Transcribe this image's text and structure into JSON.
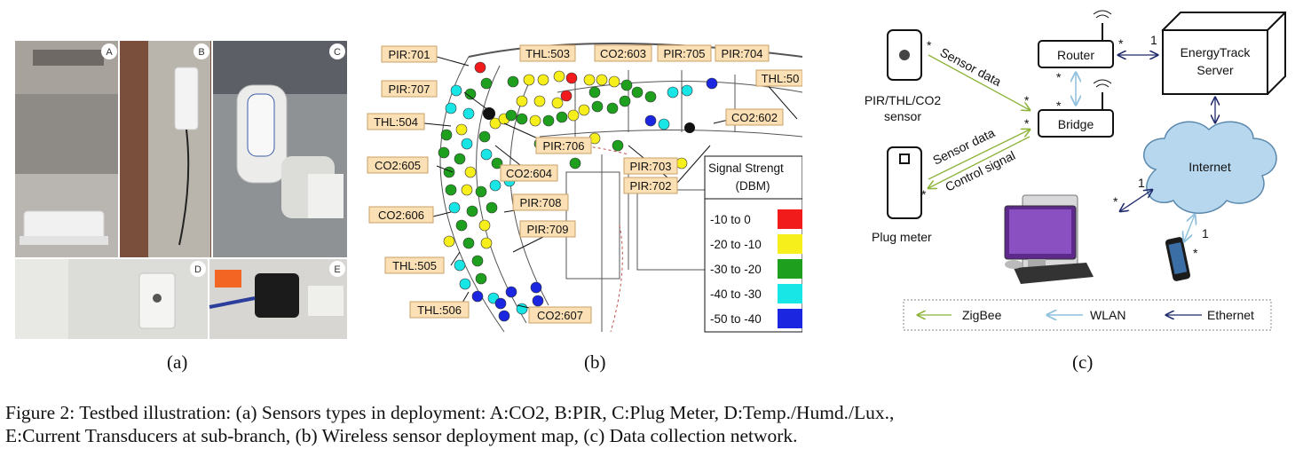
{
  "figure": {
    "panel_a": {
      "label": "(a)",
      "photos": [
        {
          "letter": "A",
          "subject": "CO2 sensor"
        },
        {
          "letter": "B",
          "subject": "PIR sensor"
        },
        {
          "letter": "C",
          "subject": "Plug meter"
        },
        {
          "letter": "D",
          "subject": "Temp/Humd/Lux sensor"
        },
        {
          "letter": "E",
          "subject": "Current transducers"
        }
      ]
    },
    "panel_b": {
      "label": "(b)",
      "tags": [
        "PIR:701",
        "THL:503",
        "CO2:603",
        "PIR:705",
        "PIR:704",
        "THL:50",
        "PIR:707",
        "THL:504",
        "PIR:706",
        "CO2:602",
        "CO2:604",
        "CO2:605",
        "PIR:703",
        "PIR:702",
        "PIR:708",
        "CO2:606",
        "PIR:709",
        "THL:505",
        "THL:506",
        "CO2:607"
      ],
      "legend": {
        "title_line1": "Signal Strengt",
        "title_line2": "(DBM)",
        "items": [
          {
            "label": "-10 to 0",
            "color": "#f21b1b"
          },
          {
            "label": "-20 to -10",
            "color": "#f7ef1c"
          },
          {
            "label": "-30 to -20",
            "color": "#1e9f1e"
          },
          {
            "label": "-40 to -30",
            "color": "#18e6e6"
          },
          {
            "label": "-50 to -40",
            "color": "#1a26e0"
          }
        ]
      }
    },
    "panel_c": {
      "label": "(c)",
      "nodes": {
        "sensor_line1": "PIR/THL/CO2",
        "sensor_line2": "sensor",
        "plug": "Plug meter",
        "router": "Router",
        "bridge": "Bridge",
        "server_line1": "EnergyTrack",
        "server_line2": "Server",
        "internet": "Internet"
      },
      "edge_labels": {
        "sensor_data_1": "Sensor data",
        "sensor_data_2": "Sensor data",
        "control_signal": "Control signal",
        "star": "*",
        "one": "1"
      },
      "legend": {
        "zigbee": "ZigBee",
        "wlan": "WLAN",
        "ethernet": "Ethernet"
      },
      "colors": {
        "zigbee": "#8db33a",
        "wlan": "#8fc1dd",
        "ethernet": "#1f2a6b",
        "cloud": "#b7d7ee"
      }
    },
    "caption_line1": "Figure 2:  Testbed illustration:  (a) Sensors types in deployment:  A:CO2, B:PIR, C:Plug Meter, D:Temp./Humd./Lux.,",
    "caption_line2": "E:Current Transducers at sub-branch, (b) Wireless sensor deployment map, (c) Data collection network."
  }
}
